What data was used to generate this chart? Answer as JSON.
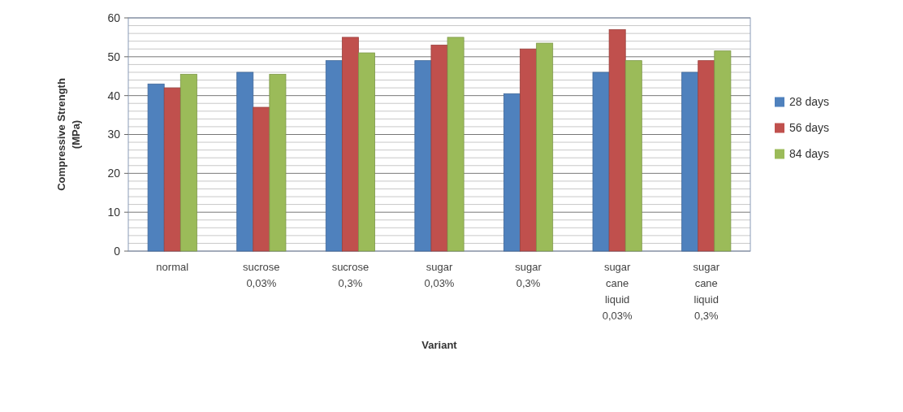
{
  "chart_data": {
    "type": "bar",
    "xlabel": "Variant",
    "ylabel": "Compressive Strength (MPa)",
    "categories": [
      "normal",
      "sucrose 0,03%",
      "sucrose 0,3%",
      "sugar 0,03%",
      "sugar 0,3%",
      "sugar cane liquid 0,03%",
      "sugar cane liquid 0,3%"
    ],
    "series": [
      {
        "name": "28 days",
        "color": "#4f81bd",
        "values": [
          43,
          46,
          49,
          49,
          40.5,
          46,
          46
        ]
      },
      {
        "name": "56 days",
        "color": "#c0504d",
        "values": [
          42,
          37,
          55,
          53,
          52,
          57,
          49
        ]
      },
      {
        "name": "84 days",
        "color": "#9bbb59",
        "values": [
          45.5,
          45.5,
          51,
          55,
          53.5,
          49,
          51.5
        ]
      }
    ],
    "ylim": [
      0,
      60
    ],
    "yticks": [
      0,
      10,
      20,
      30,
      40,
      50,
      60
    ],
    "grid": "y",
    "legend": "right"
  }
}
